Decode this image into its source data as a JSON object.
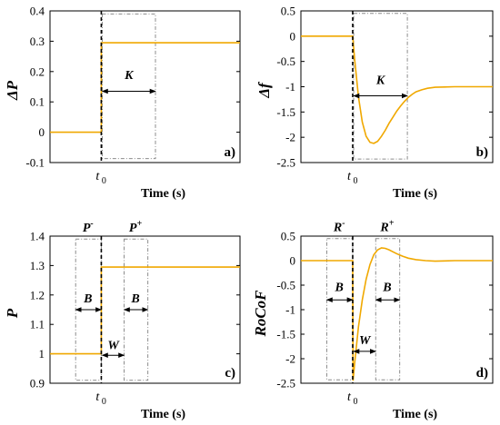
{
  "colors": {
    "series": "#f0a800",
    "axis": "#000000",
    "window": "#8c8c8c"
  },
  "chart_data": [
    {
      "id": "a",
      "type": "line",
      "panel_label": "a)",
      "xlabel": "Time (s)",
      "ylabel_main": "ΔP",
      "ylabel_sup": "",
      "ylim": [
        -0.1,
        0.4
      ],
      "yticks": [
        -0.1,
        0,
        0.1,
        0.2,
        0.3,
        0.4
      ],
      "ytick_labels": [
        "-0.1",
        "0",
        "0.1",
        "0.2",
        "0.3",
        "0.4"
      ],
      "xlim": [
        0,
        10
      ],
      "t0": 2.7,
      "t0_label": "t",
      "t0_sub": "0",
      "series": [
        {
          "x": [
            0,
            2.7,
            2.7,
            10
          ],
          "y": [
            0,
            0,
            0.295,
            0.295
          ]
        }
      ],
      "windows": [
        {
          "x0": 2.75,
          "x1": 5.55,
          "y0": -0.087,
          "y1": 0.39
        }
      ],
      "labels": [
        {
          "text": "K",
          "sup": "",
          "x": 4.15,
          "y": 0.215
        }
      ],
      "arrows": [
        {
          "x0": 2.75,
          "x1": 5.55,
          "y": 0.135
        }
      ],
      "annotations": [
        {
          "text": "K",
          "sup": "",
          "x": 4.15,
          "y": 0.175,
          "anchor": "middle"
        }
      ]
    },
    {
      "id": "b",
      "type": "line",
      "panel_label": "b)",
      "xlabel": "Time (s)",
      "ylabel_main": "Δf",
      "ylabel_sup": "",
      "ylim": [
        -2.5,
        0.5
      ],
      "yticks": [
        -2.5,
        -2,
        -1.5,
        -1,
        -0.5,
        0,
        0.5
      ],
      "ytick_labels": [
        "-2.5",
        "-2",
        "-1.5",
        "-1",
        "-0.5",
        "0",
        "0.5"
      ],
      "xlim": [
        0,
        10
      ],
      "t0": 2.7,
      "t0_label": "t",
      "t0_sub": "0",
      "series": [
        {
          "x": [
            0,
            2.7,
            2.8,
            3.0,
            3.2,
            3.4,
            3.6,
            3.8,
            4.0,
            4.2,
            4.4,
            4.6,
            4.8,
            5.0,
            5.2,
            5.4,
            5.6,
            5.8,
            6.0,
            6.3,
            6.6,
            7.0,
            7.5,
            8.0,
            8.5,
            9.0,
            9.5,
            10
          ],
          "y": [
            0,
            0,
            -0.45,
            -1.2,
            -1.7,
            -1.98,
            -2.1,
            -2.12,
            -2.08,
            -1.98,
            -1.86,
            -1.72,
            -1.6,
            -1.48,
            -1.38,
            -1.29,
            -1.21,
            -1.15,
            -1.1,
            -1.06,
            -1.03,
            -1.01,
            -1.005,
            -1.0,
            -1.0,
            -1.0,
            -1.0,
            -1.0
          ]
        }
      ],
      "windows": [
        {
          "x0": 2.75,
          "x1": 5.55,
          "y0": -2.43,
          "y1": 0.45
        }
      ],
      "arrows": [
        {
          "x0": 2.75,
          "x1": 5.55,
          "y": -1.18
        }
      ],
      "annotations": [
        {
          "text": "K",
          "sup": "",
          "x": 4.15,
          "y": -0.95,
          "anchor": "middle"
        }
      ]
    },
    {
      "id": "c",
      "type": "line",
      "panel_label": "c)",
      "xlabel": "Time (s)",
      "ylabel_main": "P",
      "ylabel_sup": "",
      "ylim": [
        0.9,
        1.4
      ],
      "yticks": [
        0.9,
        1,
        1.1,
        1.2,
        1.3,
        1.4
      ],
      "ytick_labels": [
        "0.9",
        "1",
        "1.1",
        "1.2",
        "1.3",
        "1.4"
      ],
      "xlim": [
        0,
        10
      ],
      "t0": 2.7,
      "t0_label": "t",
      "t0_sub": "0",
      "series": [
        {
          "x": [
            0,
            2.7,
            2.7,
            10
          ],
          "y": [
            1.0,
            1.0,
            1.295,
            1.295
          ]
        }
      ],
      "windows": [
        {
          "x0": 1.35,
          "x1": 2.7,
          "y0": 0.91,
          "y1": 1.39
        },
        {
          "x0": 3.9,
          "x1": 5.15,
          "y0": 0.91,
          "y1": 1.39
        }
      ],
      "arrows": [
        {
          "x0": 1.35,
          "x1": 2.7,
          "y": 1.15
        },
        {
          "x0": 3.9,
          "x1": 5.15,
          "y": 1.15
        },
        {
          "x0": 2.75,
          "x1": 3.9,
          "y": 0.995
        }
      ],
      "annotations": [
        {
          "text": "P",
          "sup": "-",
          "x": 2.0,
          "y": 1.415,
          "anchor": "middle"
        },
        {
          "text": "P",
          "sup": "+",
          "x": 4.5,
          "y": 1.415,
          "anchor": "middle"
        },
        {
          "text": "B",
          "sup": "",
          "x": 2.0,
          "y": 1.175,
          "anchor": "middle"
        },
        {
          "text": "B",
          "sup": "",
          "x": 4.5,
          "y": 1.175,
          "anchor": "middle"
        },
        {
          "text": "W",
          "sup": "",
          "x": 3.33,
          "y": 1.015,
          "anchor": "middle"
        }
      ]
    },
    {
      "id": "d",
      "type": "line",
      "panel_label": "d)",
      "xlabel": "Time (s)",
      "ylabel_main": "RoCoF",
      "ylabel_sup": "",
      "ylim": [
        -2.5,
        0.5
      ],
      "yticks": [
        -2.5,
        -2,
        -1.5,
        -1,
        -0.5,
        0,
        0.5
      ],
      "ytick_labels": [
        "-2.5",
        "-2",
        "-1.5",
        "-1",
        "-0.5",
        "0",
        "0.5"
      ],
      "xlim": [
        0,
        10
      ],
      "t0": 2.7,
      "t0_label": "t",
      "t0_sub": "0",
      "series": [
        {
          "x": [
            0,
            2.7,
            2.72,
            2.8,
            3.0,
            3.2,
            3.4,
            3.6,
            3.8,
            4.0,
            4.2,
            4.4,
            4.6,
            4.8,
            5.0,
            5.3,
            5.6,
            6.0,
            6.5,
            7.0,
            7.5,
            8.0,
            8.5,
            9.0,
            9.5,
            10
          ],
          "y": [
            0,
            0,
            -2.45,
            -2.1,
            -1.35,
            -0.8,
            -0.38,
            -0.08,
            0.12,
            0.22,
            0.26,
            0.25,
            0.22,
            0.18,
            0.14,
            0.09,
            0.05,
            0.02,
            0.0,
            -0.01,
            -0.005,
            0,
            0,
            0,
            0,
            0
          ]
        }
      ],
      "windows": [
        {
          "x0": 1.35,
          "x1": 2.7,
          "y0": -2.43,
          "y1": 0.45
        },
        {
          "x0": 3.9,
          "x1": 5.15,
          "y0": -2.43,
          "y1": 0.45
        }
      ],
      "arrows": [
        {
          "x0": 1.35,
          "x1": 2.7,
          "y": -0.8
        },
        {
          "x0": 3.9,
          "x1": 5.15,
          "y": -0.8
        },
        {
          "x0": 2.75,
          "x1": 3.9,
          "y": -1.85
        }
      ],
      "annotations": [
        {
          "text": "R",
          "sup": "-",
          "x": 2.0,
          "y": 0.6,
          "anchor": "middle"
        },
        {
          "text": "R",
          "sup": "+",
          "x": 4.5,
          "y": 0.6,
          "anchor": "middle"
        },
        {
          "text": "B",
          "sup": "",
          "x": 2.0,
          "y": -0.62,
          "anchor": "middle"
        },
        {
          "text": "B",
          "sup": "",
          "x": 4.5,
          "y": -0.62,
          "anchor": "middle"
        },
        {
          "text": "W",
          "sup": "",
          "x": 3.33,
          "y": -1.7,
          "anchor": "middle"
        }
      ]
    }
  ]
}
